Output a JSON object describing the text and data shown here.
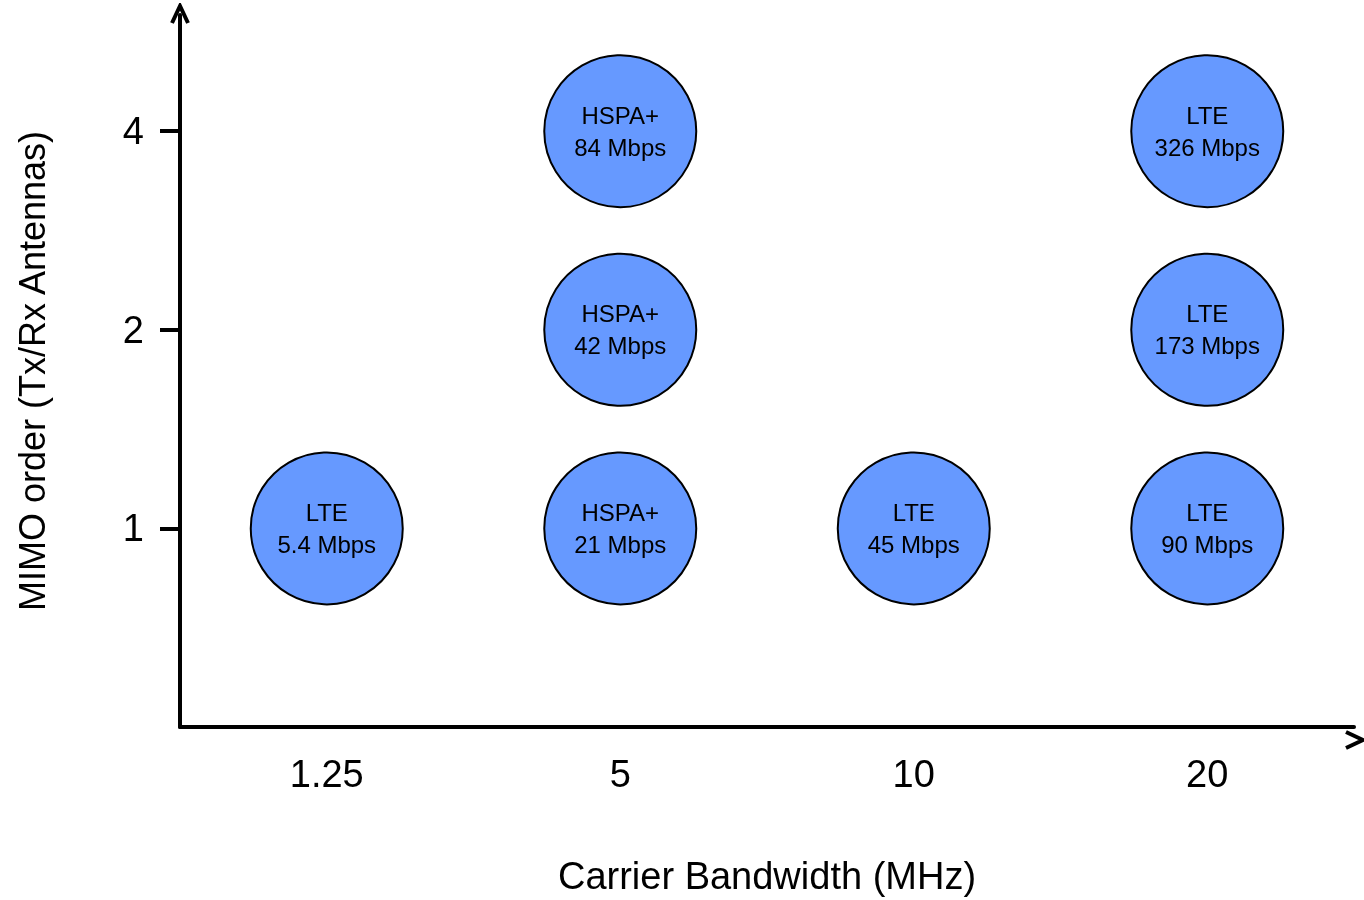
{
  "chart_data": {
    "type": "scatter",
    "xlabel": "Carrier Bandwidth (MHz)",
    "ylabel": "MIMO order (Tx/Rx Antennas)",
    "categories": [
      "1.25",
      "5",
      "10",
      "20"
    ],
    "series": [
      {
        "color": "#6699ff",
        "x": [
          "1.25",
          "5",
          "5",
          "5",
          "10",
          "20",
          "20",
          "20"
        ],
        "values": [
          1,
          1,
          2,
          4,
          1,
          1,
          2,
          4
        ],
        "value_labels": [
          "LTE\n5.4 Mbps",
          "HSPA+\n21 Mbps",
          "HSPA+\n42 Mbps",
          "HSPA+\n84 Mbps",
          "LTE\n45 Mbps",
          "LTE\n90 Mbps",
          "LTE\n173 Mbps",
          "LTE\n326 Mbps"
        ]
      }
    ],
    "log": "y",
    "ylim": [
      0.5,
      6
    ],
    "yticks": [
      1,
      2,
      4
    ],
    "grid": false,
    "marker": "circle"
  }
}
